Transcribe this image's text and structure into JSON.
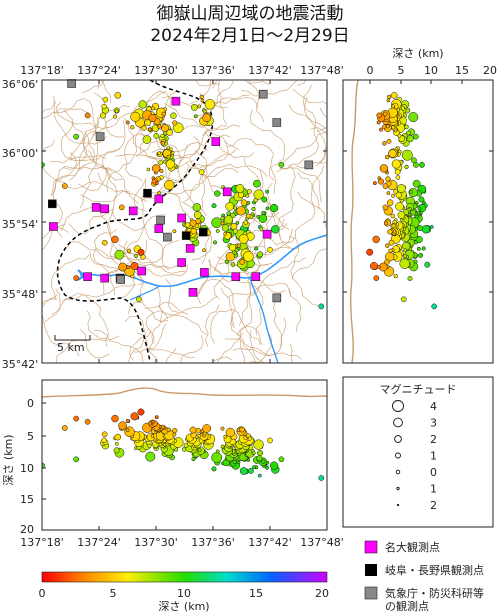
{
  "title_line1": "御嶽山周辺域の地震活動",
  "title_line2": "2024年2月1日～2月29日",
  "map": {
    "lon_ticks": [
      "137°18'",
      "137°24'",
      "137°30'",
      "137°36'",
      "137°42'",
      "137°48'"
    ],
    "lat_ticks": [
      "36°06'",
      "36°00'",
      "35°54'",
      "35°48'",
      "35°42'"
    ],
    "scale_label": "5 km"
  },
  "lat_section": {
    "axis_label": "深さ (km)",
    "ticks": [
      "0",
      "5",
      "10",
      "15",
      "20"
    ]
  },
  "lon_section": {
    "axis_label": "深さ (km)",
    "ticks": [
      "0",
      "5",
      "10",
      "15",
      "20"
    ],
    "lon_ticks": [
      "137°18'",
      "137°24'",
      "137°30'",
      "137°36'",
      "137°42'",
      "137°48'"
    ]
  },
  "magnitude_legend": {
    "title": "マグニチュード",
    "items": [
      {
        "label": "4",
        "r": 5.5
      },
      {
        "label": "3",
        "r": 4.4
      },
      {
        "label": "2",
        "r": 3.4
      },
      {
        "label": "1",
        "r": 2.5
      },
      {
        "label": "0",
        "r": 1.8
      },
      {
        "label": "1",
        "r": 1.2
      },
      {
        "label": "2",
        "r": 0.7
      }
    ]
  },
  "station_legend": [
    {
      "label": "名大観測点",
      "color": "#ff00ff"
    },
    {
      "label": "岐阜・長野県観測点",
      "color": "#000000"
    },
    {
      "label": "気象庁・防災科研等",
      "label2": "の観測点",
      "color": "#888888"
    }
  ],
  "colorbar": {
    "ticks": [
      "0",
      "5",
      "10",
      "15",
      "20"
    ],
    "label": "深さ (km)",
    "range": [
      0,
      20
    ]
  },
  "colors": {
    "topo": "#c89a6a",
    "river": "#3399ff",
    "boundary": "#000000"
  },
  "stations": [
    {
      "type": "nagoya",
      "lon": 137.535,
      "lat": 36.07
    },
    {
      "type": "nagoya",
      "lon": 137.605,
      "lat": 36.013
    },
    {
      "type": "nagoya",
      "lon": 137.625,
      "lat": 35.942
    },
    {
      "type": "nagoya",
      "lon": 137.505,
      "lat": 35.932
    },
    {
      "type": "nagoya",
      "lon": 137.395,
      "lat": 35.92
    },
    {
      "type": "nagoya",
      "lon": 137.41,
      "lat": 35.918
    },
    {
      "type": "nagoya",
      "lon": 137.46,
      "lat": 35.915
    },
    {
      "type": "nagoya",
      "lon": 137.545,
      "lat": 35.905
    },
    {
      "type": "nagoya",
      "lon": 137.32,
      "lat": 35.893
    },
    {
      "type": "nagoya",
      "lon": 137.505,
      "lat": 35.89
    },
    {
      "type": "nagoya",
      "lon": 137.56,
      "lat": 35.862
    },
    {
      "type": "nagoya",
      "lon": 137.695,
      "lat": 35.882
    },
    {
      "type": "nagoya",
      "lon": 137.545,
      "lat": 35.842
    },
    {
      "type": "nagoya",
      "lon": 137.475,
      "lat": 35.83
    },
    {
      "type": "nagoya",
      "lon": 137.585,
      "lat": 35.828
    },
    {
      "type": "nagoya",
      "lon": 137.38,
      "lat": 35.822
    },
    {
      "type": "nagoya",
      "lon": 137.64,
      "lat": 35.822
    },
    {
      "type": "nagoya",
      "lon": 137.41,
      "lat": 35.82
    },
    {
      "type": "nagoya",
      "lon": 137.565,
      "lat": 35.8
    },
    {
      "type": "nagoya",
      "lon": 137.675,
      "lat": 35.822
    },
    {
      "type": "gifu",
      "lon": 137.318,
      "lat": 35.925
    },
    {
      "type": "gifu",
      "lon": 137.485,
      "lat": 35.94
    },
    {
      "type": "gifu",
      "lon": 137.437,
      "lat": 35.82
    },
    {
      "type": "gifu",
      "lon": 137.553,
      "lat": 35.88
    },
    {
      "type": "gifu",
      "lon": 137.583,
      "lat": 35.885
    },
    {
      "type": "jma",
      "lon": 137.352,
      "lat": 36.095
    },
    {
      "type": "jma",
      "lon": 137.402,
      "lat": 36.02
    },
    {
      "type": "jma",
      "lon": 137.508,
      "lat": 35.902
    },
    {
      "type": "jma",
      "lon": 137.52,
      "lat": 35.878
    },
    {
      "type": "jma",
      "lon": 137.712,
      "lat": 36.04
    },
    {
      "type": "jma",
      "lon": 137.768,
      "lat": 35.98
    },
    {
      "type": "jma",
      "lon": 137.688,
      "lat": 36.08
    },
    {
      "type": "jma",
      "lon": 137.712,
      "lat": 35.792
    },
    {
      "type": "jma",
      "lon": 137.438,
      "lat": 35.818
    }
  ]
}
